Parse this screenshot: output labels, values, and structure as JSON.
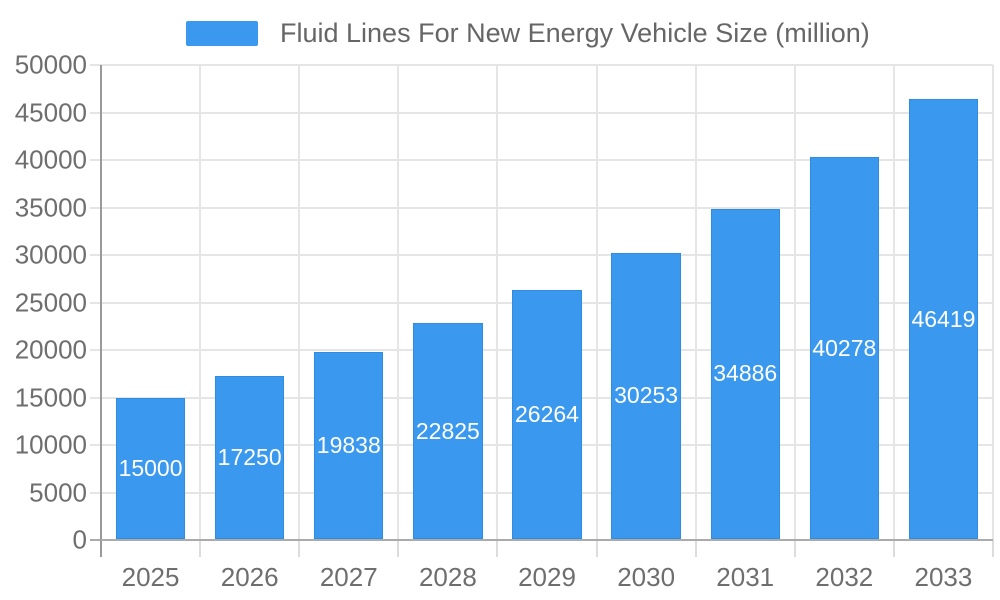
{
  "legend": {
    "label": "Fluid Lines For New Energy Vehicle Size (million)",
    "position": "top-center"
  },
  "chart_data": {
    "type": "bar",
    "title": "Fluid Lines For New Energy Vehicle Size (million)",
    "categories": [
      "2025",
      "2026",
      "2027",
      "2028",
      "2029",
      "2030",
      "2031",
      "2032",
      "2033"
    ],
    "values": [
      15000,
      17250,
      19838,
      22825,
      26264,
      30253,
      34886,
      40278,
      46419
    ],
    "series": [
      {
        "name": "Fluid Lines For New Energy Vehicle Size (million)",
        "values": [
          15000,
          17250,
          19838,
          22825,
          26264,
          30253,
          34886,
          40278,
          46419
        ]
      }
    ],
    "xlabel": "",
    "ylabel": "",
    "ylim": [
      0,
      50000
    ],
    "y_ticks": [
      0,
      5000,
      10000,
      15000,
      20000,
      25000,
      30000,
      35000,
      40000,
      45000,
      50000
    ],
    "grid": "horizontal-and-vertical",
    "legend_position": "top",
    "value_labels": "white, centered inside bars"
  },
  "colors": {
    "bar": "#3a99ee",
    "bar_border": "#2f8de0",
    "grid_line": "#e5e5e5",
    "y_axis_line": "#999999",
    "x_axis_line": "#ababab",
    "x_tick": "#dcdcdc",
    "axis_label_text": "#6e6e6e",
    "title_text": "#666666",
    "value_label_text": "#ffffff",
    "background": "#ffffff"
  }
}
